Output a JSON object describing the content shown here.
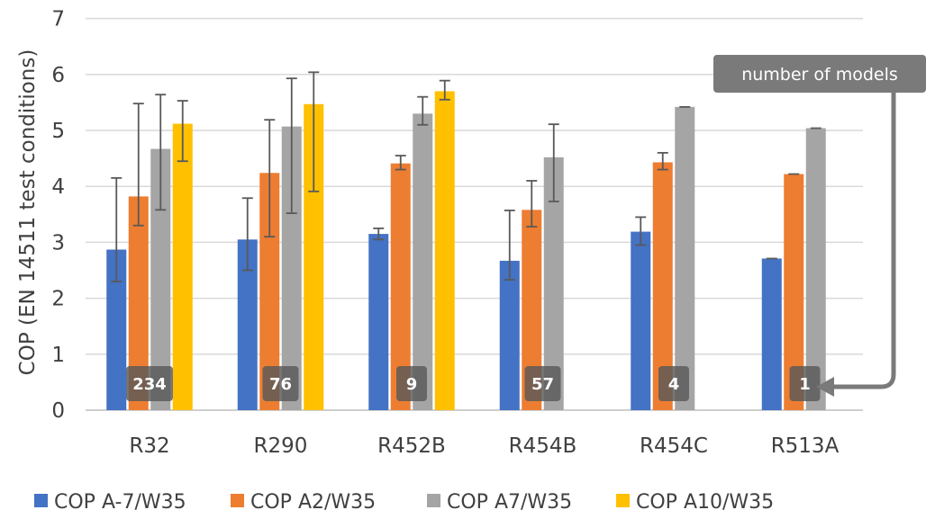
{
  "chart_data": {
    "type": "bar",
    "title": "",
    "xlabel": "",
    "ylabel": "COP (EN 14511 test conditions)",
    "ylim": [
      0,
      7
    ],
    "yticks": [
      0,
      1,
      2,
      3,
      4,
      5,
      6,
      7
    ],
    "grid": true,
    "legend_position": "bottom",
    "categories": [
      "R32",
      "R290",
      "R452B",
      "R454B",
      "R454C",
      "R513A"
    ],
    "series": [
      {
        "name": "COP A-7/W35",
        "color": "#4472c4",
        "values": [
          2.87,
          3.05,
          3.15,
          2.67,
          3.19,
          2.71
        ],
        "error_low": [
          2.3,
          2.5,
          3.05,
          2.33,
          2.95,
          null
        ],
        "error_high": [
          4.15,
          3.79,
          3.25,
          3.57,
          3.45,
          null
        ]
      },
      {
        "name": "COP A2/W35",
        "color": "#ed7d31",
        "values": [
          3.82,
          4.24,
          4.41,
          3.58,
          4.43,
          4.22
        ],
        "error_low": [
          3.3,
          3.1,
          4.3,
          3.28,
          4.3,
          null
        ],
        "error_high": [
          5.48,
          5.19,
          4.55,
          4.1,
          4.6,
          null
        ]
      },
      {
        "name": "COP A7/W35",
        "color": "#a5a5a5",
        "values": [
          4.67,
          5.07,
          5.3,
          4.52,
          5.42,
          5.04
        ],
        "error_low": [
          3.58,
          3.52,
          5.1,
          3.73,
          null,
          null
        ],
        "error_high": [
          5.64,
          5.93,
          5.6,
          5.11,
          null,
          null
        ]
      },
      {
        "name": "COP A10/W35",
        "color": "#ffc000",
        "values": [
          5.12,
          5.47,
          5.7,
          null,
          null,
          null
        ],
        "error_low": [
          4.45,
          3.91,
          5.55,
          null,
          null,
          null
        ],
        "error_high": [
          5.53,
          6.04,
          5.89,
          null,
          null,
          null
        ]
      }
    ],
    "model_counts": [
      "234",
      "76",
      "9",
      "57",
      "4",
      "1"
    ],
    "annotation": "number of models"
  }
}
